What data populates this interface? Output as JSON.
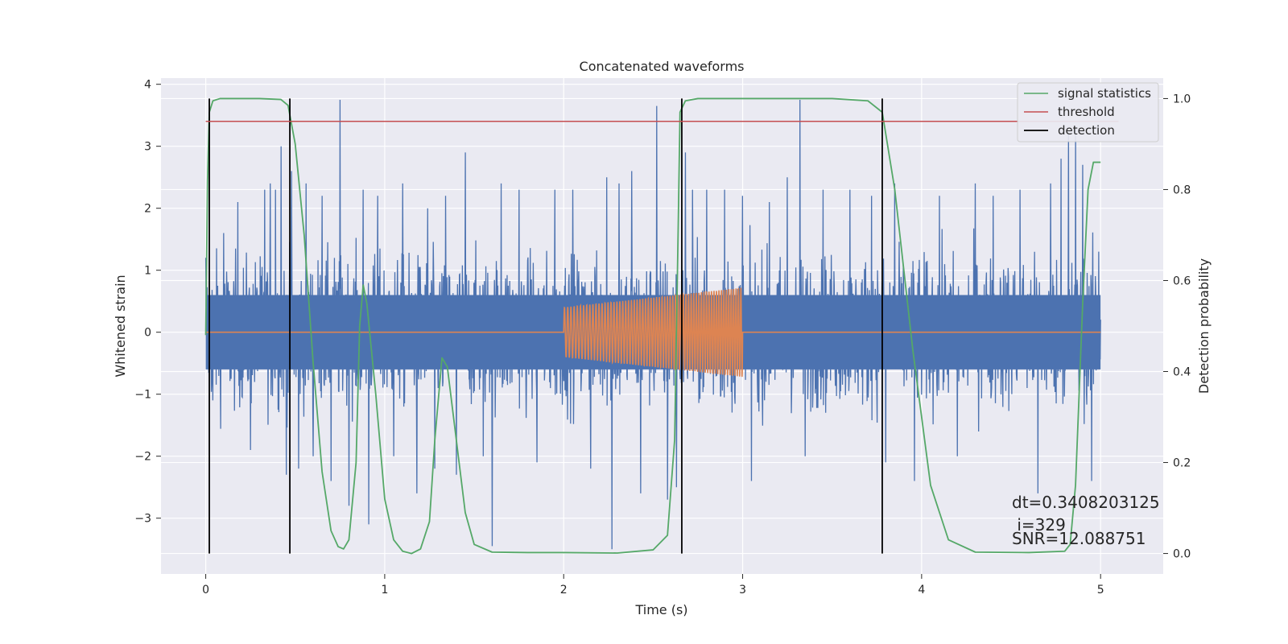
{
  "chart_data": {
    "type": "line",
    "title": "Concatenated waveforms",
    "xlabel": "Time (s)",
    "ylabel": "Whitened strain",
    "ylabel_right": "Detection probability",
    "xlim": [
      -0.25,
      5.35
    ],
    "ylim": [
      -3.9,
      4.1
    ],
    "ylim_right": [
      -0.045,
      1.045
    ],
    "grid": true,
    "x_ticks": [
      0,
      1,
      2,
      3,
      4,
      5
    ],
    "x_tick_labels": [
      "0",
      "1",
      "2",
      "3",
      "4",
      "5"
    ],
    "y_ticks": [
      -3,
      -2,
      -1,
      0,
      1,
      2,
      3,
      4
    ],
    "y_tick_labels": [
      "−3",
      "−2",
      "−1",
      "0",
      "1",
      "2",
      "3",
      "4"
    ],
    "y_ticks_right": [
      0.0,
      0.2,
      0.4,
      0.6,
      0.8,
      1.0
    ],
    "y_tick_labels_right": [
      "0.0",
      "0.2",
      "0.4",
      "0.6",
      "0.8",
      "1.0"
    ],
    "legend": {
      "placement": "top-right",
      "entries": [
        {
          "label": "signal statistics",
          "color": "#55a868"
        },
        {
          "label": "threshold",
          "color": "#c44e52"
        },
        {
          "label": "detection",
          "color": "#000000"
        }
      ]
    },
    "series": [
      {
        "role": "whitened-strain-noise",
        "color": "#4c72b0",
        "x_range": [
          0,
          5
        ],
        "points": 2400,
        "core_amplitude": 0.6,
        "spikes": [
          [
            0.0,
            1.2
          ],
          [
            0.04,
            -1.1
          ],
          [
            0.1,
            1.6
          ],
          [
            0.18,
            2.1
          ],
          [
            0.25,
            -1.9
          ],
          [
            0.33,
            2.3
          ],
          [
            0.36,
            2.4
          ],
          [
            0.39,
            2.3
          ],
          [
            0.42,
            3.0
          ],
          [
            0.45,
            -2.3
          ],
          [
            0.48,
            2.6
          ],
          [
            0.52,
            -2.2
          ],
          [
            0.56,
            2.4
          ],
          [
            0.6,
            -2.0
          ],
          [
            0.65,
            2.2
          ],
          [
            0.7,
            -2.4
          ],
          [
            0.75,
            3.75
          ],
          [
            0.8,
            -2.8
          ],
          [
            0.88,
            2.3
          ],
          [
            0.91,
            -3.1
          ],
          [
            0.96,
            2.2
          ],
          [
            1.05,
            -2.0
          ],
          [
            1.1,
            2.4
          ],
          [
            1.18,
            -2.6
          ],
          [
            1.24,
            2.0
          ],
          [
            1.28,
            -2.2
          ],
          [
            1.34,
            2.2
          ],
          [
            1.4,
            -2.3
          ],
          [
            1.45,
            2.9
          ],
          [
            1.55,
            -2.0
          ],
          [
            1.6,
            -3.45
          ],
          [
            1.65,
            2.4
          ],
          [
            1.75,
            2.3
          ],
          [
            1.85,
            -2.1
          ],
          [
            1.95,
            2.3
          ],
          [
            2.05,
            2.3
          ],
          [
            2.15,
            -2.2
          ],
          [
            2.24,
            2.5
          ],
          [
            2.27,
            -3.5
          ],
          [
            2.31,
            2.4
          ],
          [
            2.38,
            2.6
          ],
          [
            2.43,
            -2.6
          ],
          [
            2.52,
            3.65
          ],
          [
            2.58,
            -2.7
          ],
          [
            2.63,
            -2.5
          ],
          [
            2.68,
            2.9
          ],
          [
            2.72,
            2.3
          ],
          [
            2.8,
            2.3
          ],
          [
            2.9,
            2.3
          ],
          [
            3.0,
            2.2
          ],
          [
            3.05,
            -2.4
          ],
          [
            3.15,
            2.1
          ],
          [
            3.25,
            2.5
          ],
          [
            3.32,
            3.75
          ],
          [
            3.35,
            -2.0
          ],
          [
            3.45,
            2.3
          ],
          [
            3.6,
            2.3
          ],
          [
            3.72,
            2.2
          ],
          [
            3.8,
            -2.1
          ],
          [
            3.85,
            2.4
          ],
          [
            3.96,
            -2.4
          ],
          [
            4.1,
            2.2
          ],
          [
            4.2,
            -2.0
          ],
          [
            4.3,
            2.4
          ],
          [
            4.4,
            2.2
          ],
          [
            4.55,
            2.3
          ],
          [
            4.65,
            -2.6
          ],
          [
            4.72,
            2.4
          ],
          [
            4.78,
            2.8
          ],
          [
            4.82,
            3.2
          ],
          [
            4.86,
            3.3
          ],
          [
            4.9,
            2.7
          ],
          [
            4.95,
            -2.4
          ],
          [
            4.99,
            1.3
          ]
        ]
      },
      {
        "role": "injected-waveform",
        "color": "#dd8452",
        "x_range": [
          0,
          5
        ],
        "chirp": {
          "start": 2.0,
          "end": 3.0,
          "amp_start": 0.4,
          "amp_end": 0.72,
          "f_start": 55,
          "f_end": 75
        }
      },
      {
        "role": "signal-statistics",
        "name": "signal statistics",
        "axis": "right",
        "color": "#55a868",
        "x": [
          0.0,
          0.01,
          0.02,
          0.04,
          0.08,
          0.15,
          0.3,
          0.42,
          0.46,
          0.5,
          0.55,
          0.6,
          0.65,
          0.7,
          0.74,
          0.77,
          0.8,
          0.84,
          0.86,
          0.88,
          0.9,
          0.95,
          1.0,
          1.05,
          1.1,
          1.15,
          1.2,
          1.25,
          1.28,
          1.32,
          1.35,
          1.4,
          1.45,
          1.5,
          1.6,
          1.8,
          2.0,
          2.3,
          2.5,
          2.58,
          2.62,
          2.64,
          2.65,
          2.68,
          2.75,
          3.0,
          3.5,
          3.7,
          3.78,
          3.85,
          3.95,
          4.05,
          4.15,
          4.3,
          4.6,
          4.8,
          4.83,
          4.86,
          4.9,
          4.93,
          4.96,
          5.0
        ],
        "y": [
          0.48,
          0.82,
          0.97,
          0.995,
          1.0,
          1.0,
          1.0,
          0.998,
          0.985,
          0.9,
          0.7,
          0.42,
          0.18,
          0.05,
          0.015,
          0.01,
          0.03,
          0.2,
          0.5,
          0.59,
          0.55,
          0.35,
          0.12,
          0.03,
          0.005,
          0.0,
          0.01,
          0.07,
          0.25,
          0.43,
          0.41,
          0.25,
          0.09,
          0.02,
          0.003,
          0.002,
          0.002,
          0.001,
          0.008,
          0.04,
          0.25,
          0.72,
          0.97,
          0.995,
          1.0,
          1.0,
          1.0,
          0.995,
          0.97,
          0.8,
          0.45,
          0.15,
          0.03,
          0.003,
          0.002,
          0.005,
          0.02,
          0.15,
          0.55,
          0.8,
          0.86,
          0.86
        ]
      },
      {
        "role": "threshold",
        "name": "threshold",
        "axis": "right",
        "color": "#c44e52",
        "x": [
          0,
          5.1
        ],
        "y": [
          0.95,
          0.95
        ]
      }
    ],
    "detections": [
      0.02,
      0.47,
      2.66,
      3.78
    ],
    "detection_range_right": [
      0,
      1
    ],
    "annotations": [
      "dt=0.3408203125",
      " i=329",
      "SNR=12.088751"
    ]
  }
}
